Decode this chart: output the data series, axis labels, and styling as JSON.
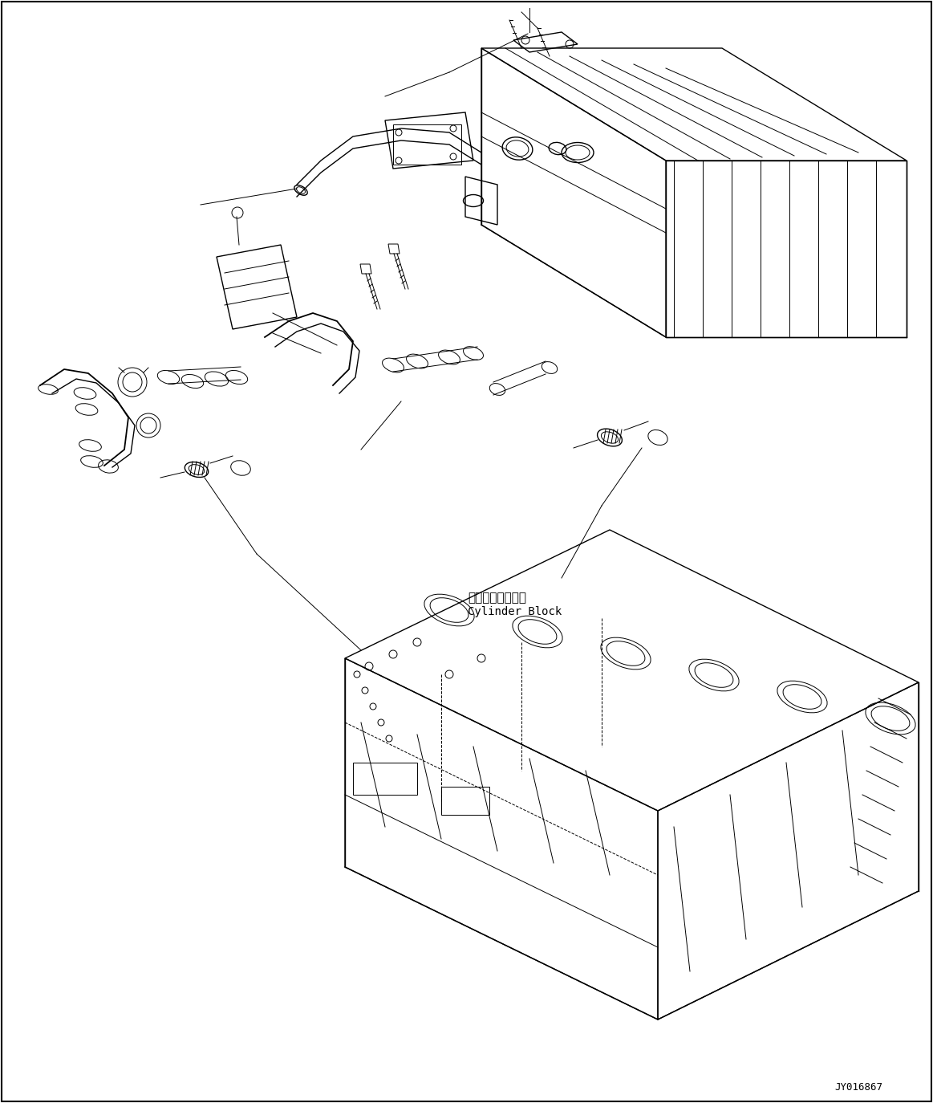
{
  "background_color": "#ffffff",
  "line_color": "#000000",
  "text_color": "#000000",
  "label_japanese": "シリンダブロック",
  "label_english": "Cylinder Block",
  "watermark": "JY016867",
  "fig_width": 11.63,
  "fig_height": 13.74,
  "dpi": 100
}
